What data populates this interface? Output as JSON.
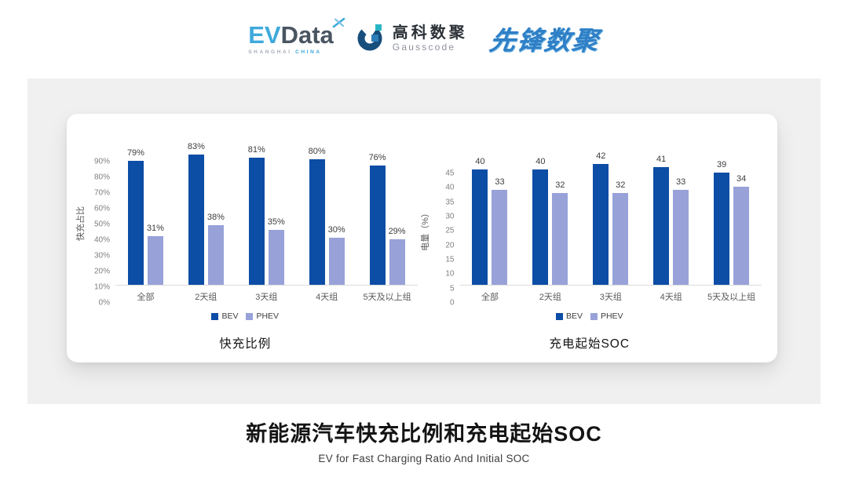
{
  "header": {
    "evdata": {
      "ev": "EV",
      "data": "Data",
      "shanghai": "SHANGHAI",
      "china": "CHINA"
    },
    "gausscode": {
      "cn": "高科数聚",
      "en": "Gausscode"
    },
    "pioneer": {
      "text": "先锋数聚"
    }
  },
  "footer": {
    "title": "新能源汽车快充比例和充电起始SOC",
    "subtitle": "EV for Fast Charging Ratio And Initial SOC"
  },
  "colors": {
    "bev": "#0c4da6",
    "phev": "#98a2d9",
    "axis_text": "#7f7f7f",
    "baseline": "#dcdcdc",
    "panel": "#f0f0f1",
    "logo_lightblue": "#3fa9dc",
    "logo_slate": "#4a5562",
    "pioneer_blue": "#2f7fc6"
  },
  "chart_data": [
    {
      "type": "bar",
      "title": "快充比例",
      "xlabel": "",
      "ylabel": "快充占比",
      "categories": [
        "全部",
        "2天组",
        "3天组",
        "4天组",
        "5天及以上组"
      ],
      "series": [
        {
          "name": "BEV",
          "values": [
            79,
            83,
            81,
            80,
            76
          ]
        },
        {
          "name": "PHEV",
          "values": [
            31,
            38,
            35,
            30,
            29
          ]
        }
      ],
      "label_suffix": "%",
      "yticks": [
        "90%",
        "80%",
        "70%",
        "60%",
        "50%",
        "40%",
        "30%",
        "20%",
        "10%",
        "0%"
      ],
      "ylim": [
        0,
        90
      ],
      "legend": [
        "BEV",
        "PHEV"
      ],
      "legend_position": "bottom",
      "grid": false
    },
    {
      "type": "bar",
      "title": "充电起始SOC",
      "xlabel": "",
      "ylabel": "电量（%）",
      "categories": [
        "全部",
        "2天组",
        "3天组",
        "4天组",
        "5天及以上组"
      ],
      "series": [
        {
          "name": "BEV",
          "values": [
            40,
            40,
            42,
            41,
            39
          ]
        },
        {
          "name": "PHEV",
          "values": [
            33,
            32,
            32,
            33,
            34
          ]
        }
      ],
      "label_suffix": "",
      "yticks": [
        "45",
        "40",
        "35",
        "30",
        "25",
        "20",
        "15",
        "10",
        "5",
        "0"
      ],
      "ylim": [
        0,
        45
      ],
      "legend": [
        "BEV",
        "PHEV"
      ],
      "legend_position": "bottom",
      "grid": false
    }
  ]
}
